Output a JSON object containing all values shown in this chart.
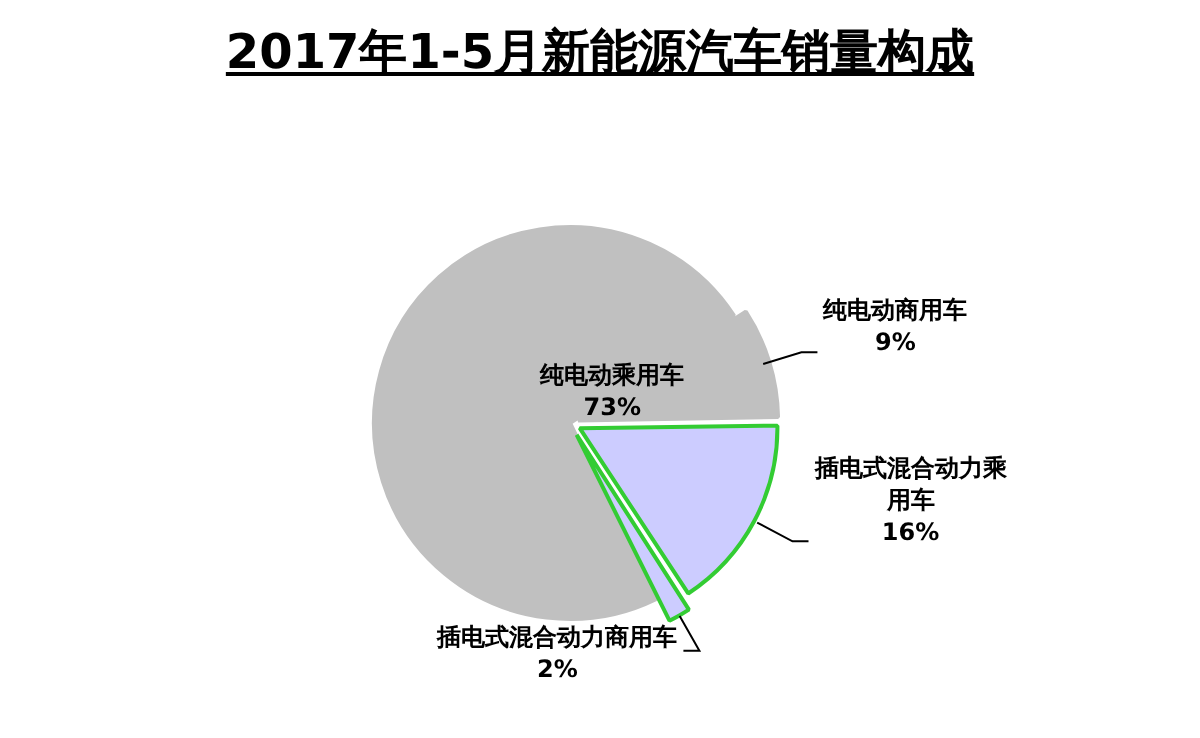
{
  "chart_data": {
    "type": "pie",
    "title": "2017年1-5月新能源汽车销量构成",
    "categories": [
      "纯电动乘用车",
      "纯电动商用车",
      "插电式混合动力乘用车",
      "插电式混合动力商用车"
    ],
    "values": [
      73,
      9,
      16,
      2
    ],
    "value_labels": [
      "73%",
      "9%",
      "16%",
      "2%"
    ],
    "colors": [
      "#c0c0c0",
      "#c0c0c0",
      "#ccccff",
      "#ccccff"
    ],
    "legend": false
  }
}
